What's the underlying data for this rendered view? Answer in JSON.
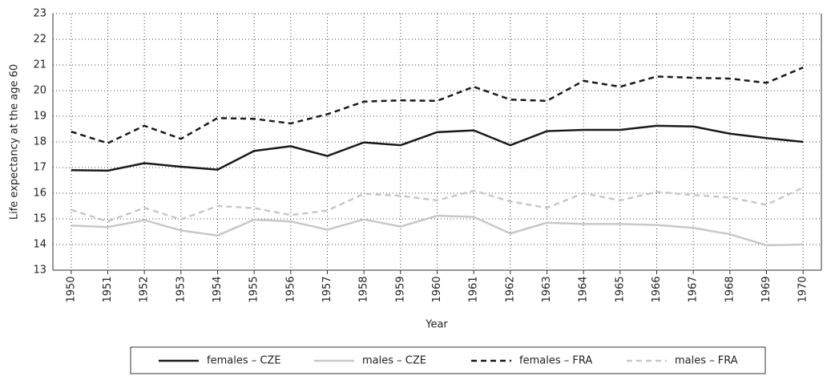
{
  "chart_data": {
    "type": "line",
    "ylabel": "Life expectancy at the age 60",
    "xlabel": "Year",
    "categories": [
      "1950",
      "1951",
      "1952",
      "1953",
      "1954",
      "1955",
      "1956",
      "1957",
      "1958",
      "1959",
      "1960",
      "1961",
      "1962",
      "1963",
      "1964",
      "1965",
      "1966",
      "1967",
      "1968",
      "1969",
      "1970"
    ],
    "series": [
      {
        "name": "females – CZE",
        "color": "#1a1a1a",
        "dashed": false,
        "values": [
          16.9,
          16.88,
          17.17,
          17.03,
          16.92,
          17.65,
          17.83,
          17.45,
          17.98,
          17.87,
          18.38,
          18.45,
          17.87,
          18.42,
          18.47,
          18.47,
          18.63,
          18.6,
          18.32,
          18.15,
          18.0
        ]
      },
      {
        "name": "males – CZE",
        "color": "#c8c8c8",
        "dashed": false,
        "values": [
          14.74,
          14.68,
          14.95,
          14.55,
          14.35,
          14.97,
          14.9,
          14.58,
          14.98,
          14.7,
          15.12,
          15.08,
          14.43,
          14.85,
          14.8,
          14.8,
          14.76,
          14.65,
          14.4,
          13.97,
          14.0
        ]
      },
      {
        "name": "females – FRA",
        "color": "#1a1a1a",
        "dashed": true,
        "values": [
          18.4,
          17.95,
          18.63,
          18.12,
          18.93,
          18.9,
          18.72,
          19.08,
          19.57,
          19.62,
          19.6,
          20.15,
          19.65,
          19.6,
          20.38,
          20.15,
          20.55,
          20.5,
          20.47,
          20.3,
          20.9
        ]
      },
      {
        "name": "males – FRA",
        "color": "#c8c8c8",
        "dashed": true,
        "values": [
          15.35,
          14.9,
          15.43,
          14.98,
          15.5,
          15.42,
          15.15,
          15.32,
          15.98,
          15.9,
          15.72,
          16.1,
          15.68,
          15.43,
          16.0,
          15.72,
          16.05,
          15.93,
          15.83,
          15.55,
          16.22
        ]
      }
    ],
    "ylim": [
      13,
      23
    ],
    "yticks": [
      13,
      14,
      15,
      16,
      17,
      18,
      19,
      20,
      21,
      22,
      23
    ],
    "grid": true,
    "legend": "bottom"
  }
}
